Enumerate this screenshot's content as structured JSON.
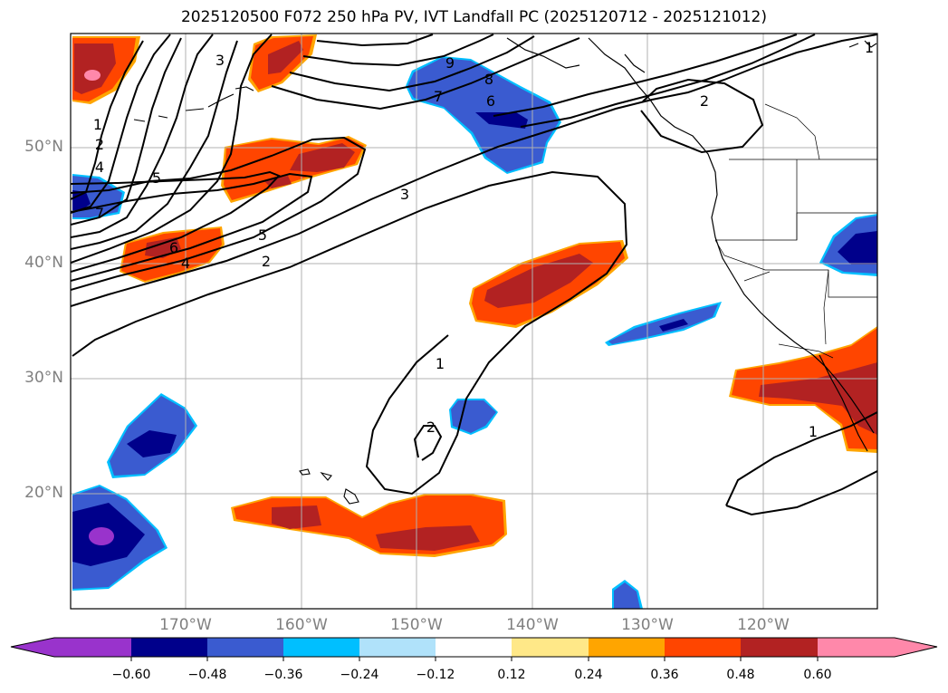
{
  "title": "2025120500 F072 250 hPa PV, IVT Landfall PC (2025120712 - 2025121012)",
  "chart_data": {
    "type": "filled-contour-map",
    "title": "2025120500 F072 250 hPa PV, IVT Landfall PC (2025120712 - 2025121012)",
    "variable": "250 hPa PV anomaly (shaded) with IVT Landfall PC contours",
    "lon_range": [
      -180,
      -110
    ],
    "lat_range": [
      10,
      60
    ],
    "lat_ticks": [
      "20°N",
      "30°N",
      "40°N",
      "50°N"
    ],
    "lon_ticks": [
      "170°W",
      "160°W",
      "150°W",
      "140°W",
      "130°W",
      "120°W"
    ],
    "contour_labels": [
      "9",
      "8",
      "7",
      "6",
      "5",
      "4",
      "3",
      "2",
      "1"
    ],
    "colorbar": {
      "ticks": [
        "−0.60",
        "−0.48",
        "−0.36",
        "−0.24",
        "−0.12",
        "0.12",
        "0.24",
        "0.36",
        "0.48",
        "0.60"
      ],
      "colors": [
        "#9933cc",
        "#00008b",
        "#3a5bd0",
        "#00bfff",
        "#b0e2fa",
        "#ffffff",
        "#ffe888",
        "#ffa500",
        "#ff4500",
        "#b22222",
        "#ff88aa"
      ],
      "extend": "both"
    }
  }
}
